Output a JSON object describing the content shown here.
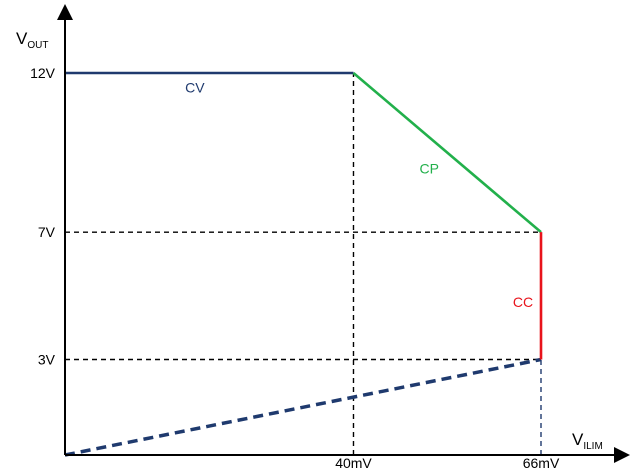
{
  "chart_data": {
    "type": "line",
    "title": "",
    "xlabel": {
      "main": "V",
      "sub": "ILIM"
    },
    "ylabel": {
      "main": "V",
      "sub": "OUT"
    },
    "xlim": [
      0,
      66
    ],
    "ylim": [
      0,
      12
    ],
    "x_ticks": [
      {
        "value": 40,
        "label": "40mV"
      },
      {
        "value": 66,
        "label": "66mV"
      }
    ],
    "y_ticks": [
      {
        "value": 3,
        "label": "3V"
      },
      {
        "value": 7,
        "label": "7V"
      },
      {
        "value": 12,
        "label": "12V"
      }
    ],
    "segments": [
      {
        "key": "cv",
        "label": "CV",
        "color": "#1f3a6e",
        "points": [
          [
            0,
            12
          ],
          [
            40,
            12
          ]
        ],
        "label_at": [
          18,
          11.55
        ],
        "label_color": "#1f3a6e"
      },
      {
        "key": "cp",
        "label": "CP",
        "color": "#22b04b",
        "points": [
          [
            40,
            12
          ],
          [
            66,
            7
          ]
        ],
        "label_at": [
          50.5,
          9.0
        ],
        "label_color": "#22b04b"
      },
      {
        "key": "cc",
        "label": "CC",
        "color": "#e8131b",
        "points": [
          [
            66,
            7
          ],
          [
            66,
            3
          ]
        ],
        "label_at": [
          63.5,
          4.8
        ],
        "label_color": "#e8131b"
      }
    ],
    "dashed_line": {
      "color": "#1f3a6e",
      "points": [
        [
          0,
          0
        ],
        [
          66,
          3
        ]
      ]
    },
    "guides": [
      {
        "points": [
          [
            0,
            7
          ],
          [
            66,
            7
          ]
        ],
        "color": "#000000"
      },
      {
        "points": [
          [
            0,
            3
          ],
          [
            66,
            3
          ]
        ],
        "color": "#000000"
      },
      {
        "points": [
          [
            40,
            0
          ],
          [
            40,
            12
          ]
        ],
        "color": "#000000"
      },
      {
        "points": [
          [
            66,
            0
          ],
          [
            66,
            3
          ]
        ],
        "color": "#1f3a6e"
      }
    ],
    "grid": false,
    "legend": "none"
  }
}
